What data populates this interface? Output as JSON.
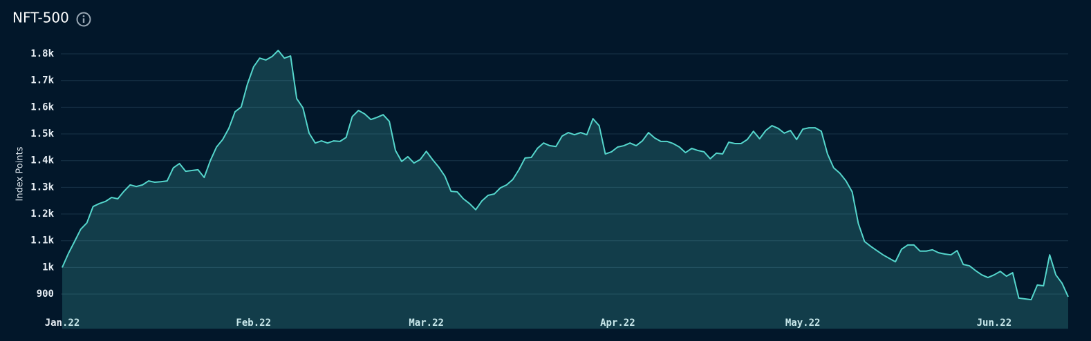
{
  "chart_data": {
    "type": "area",
    "title": "NFT-500",
    "y_label": "Index Points",
    "categories": [
      "Jan.22",
      null,
      null,
      null,
      null,
      null,
      null,
      null,
      null,
      null,
      null,
      null,
      null,
      null,
      null,
      null,
      null,
      null,
      null,
      null,
      null,
      null,
      null,
      null,
      null,
      null,
      null,
      null,
      null,
      null,
      null,
      "Feb.22",
      null,
      null,
      null,
      null,
      null,
      null,
      null,
      null,
      null,
      null,
      null,
      null,
      null,
      null,
      null,
      null,
      null,
      null,
      null,
      null,
      null,
      null,
      null,
      null,
      null,
      null,
      null,
      "Mar.22",
      null,
      null,
      null,
      null,
      null,
      null,
      null,
      null,
      null,
      null,
      null,
      null,
      null,
      null,
      null,
      null,
      null,
      null,
      null,
      null,
      null,
      null,
      null,
      null,
      null,
      null,
      null,
      null,
      null,
      null,
      "Apr.22",
      null,
      null,
      null,
      null,
      null,
      null,
      null,
      null,
      null,
      null,
      null,
      null,
      null,
      null,
      null,
      null,
      null,
      null,
      null,
      null,
      null,
      null,
      null,
      null,
      null,
      null,
      null,
      null,
      null,
      "May.22",
      null,
      null,
      null,
      null,
      null,
      null,
      null,
      null,
      null,
      null,
      null,
      null,
      null,
      null,
      null,
      null,
      null,
      null,
      null,
      null,
      null,
      null,
      null,
      null,
      null,
      null,
      null,
      null,
      null,
      null,
      "Jun.22",
      null,
      null,
      null,
      null,
      null,
      null,
      null,
      null,
      null,
      null,
      null,
      null
    ],
    "series": [
      {
        "name": "NFT-500",
        "color": "#55d6cc",
        "values": [
          1000,
          1052,
          1097,
          1143,
          1167,
          1228,
          1239,
          1247,
          1262,
          1257,
          1285,
          1309,
          1303,
          1309,
          1324,
          1319,
          1321,
          1324,
          1373,
          1389,
          1360,
          1363,
          1366,
          1337,
          1400,
          1451,
          1479,
          1521,
          1583,
          1601,
          1686,
          1751,
          1784,
          1777,
          1790,
          1813,
          1784,
          1792,
          1632,
          1598,
          1503,
          1466,
          1474,
          1466,
          1474,
          1472,
          1487,
          1565,
          1588,
          1575,
          1554,
          1562,
          1572,
          1547,
          1438,
          1397,
          1415,
          1391,
          1404,
          1435,
          1404,
          1376,
          1342,
          1285,
          1283,
          1257,
          1239,
          1216,
          1249,
          1270,
          1275,
          1298,
          1309,
          1329,
          1366,
          1410,
          1412,
          1446,
          1466,
          1456,
          1453,
          1492,
          1505,
          1497,
          1505,
          1497,
          1557,
          1531,
          1425,
          1433,
          1451,
          1456,
          1466,
          1456,
          1474,
          1505,
          1485,
          1472,
          1472,
          1464,
          1451,
          1430,
          1446,
          1438,
          1433,
          1407,
          1428,
          1425,
          1469,
          1464,
          1464,
          1479,
          1510,
          1482,
          1513,
          1531,
          1521,
          1503,
          1513,
          1479,
          1518,
          1523,
          1523,
          1510,
          1425,
          1373,
          1353,
          1324,
          1283,
          1164,
          1097,
          1079,
          1063,
          1047,
          1034,
          1021,
          1068,
          1084,
          1084,
          1061,
          1061,
          1066,
          1055,
          1050,
          1047,
          1063,
          1011,
          1006,
          988,
          972,
          962,
          972,
          985,
          967,
          980,
          885,
          882,
          879,
          934,
          931,
          1047,
          972,
          941,
          890
        ]
      }
    ],
    "ylim": [
      770,
      1850
    ],
    "yticks": [
      900,
      {
        "value": 1000,
        "label": "1k"
      },
      {
        "value": 1100,
        "label": "1.1k"
      },
      {
        "value": 1200,
        "label": "1.2k"
      },
      {
        "value": 1300,
        "label": "1.3k"
      },
      {
        "value": 1400,
        "label": "1.4k"
      },
      {
        "value": 1500,
        "label": "1.5k"
      },
      {
        "value": 1600,
        "label": "1.6k"
      },
      {
        "value": 1700,
        "label": "1.7k"
      },
      {
        "value": 1800,
        "label": "1.8k"
      }
    ],
    "grid": true
  }
}
